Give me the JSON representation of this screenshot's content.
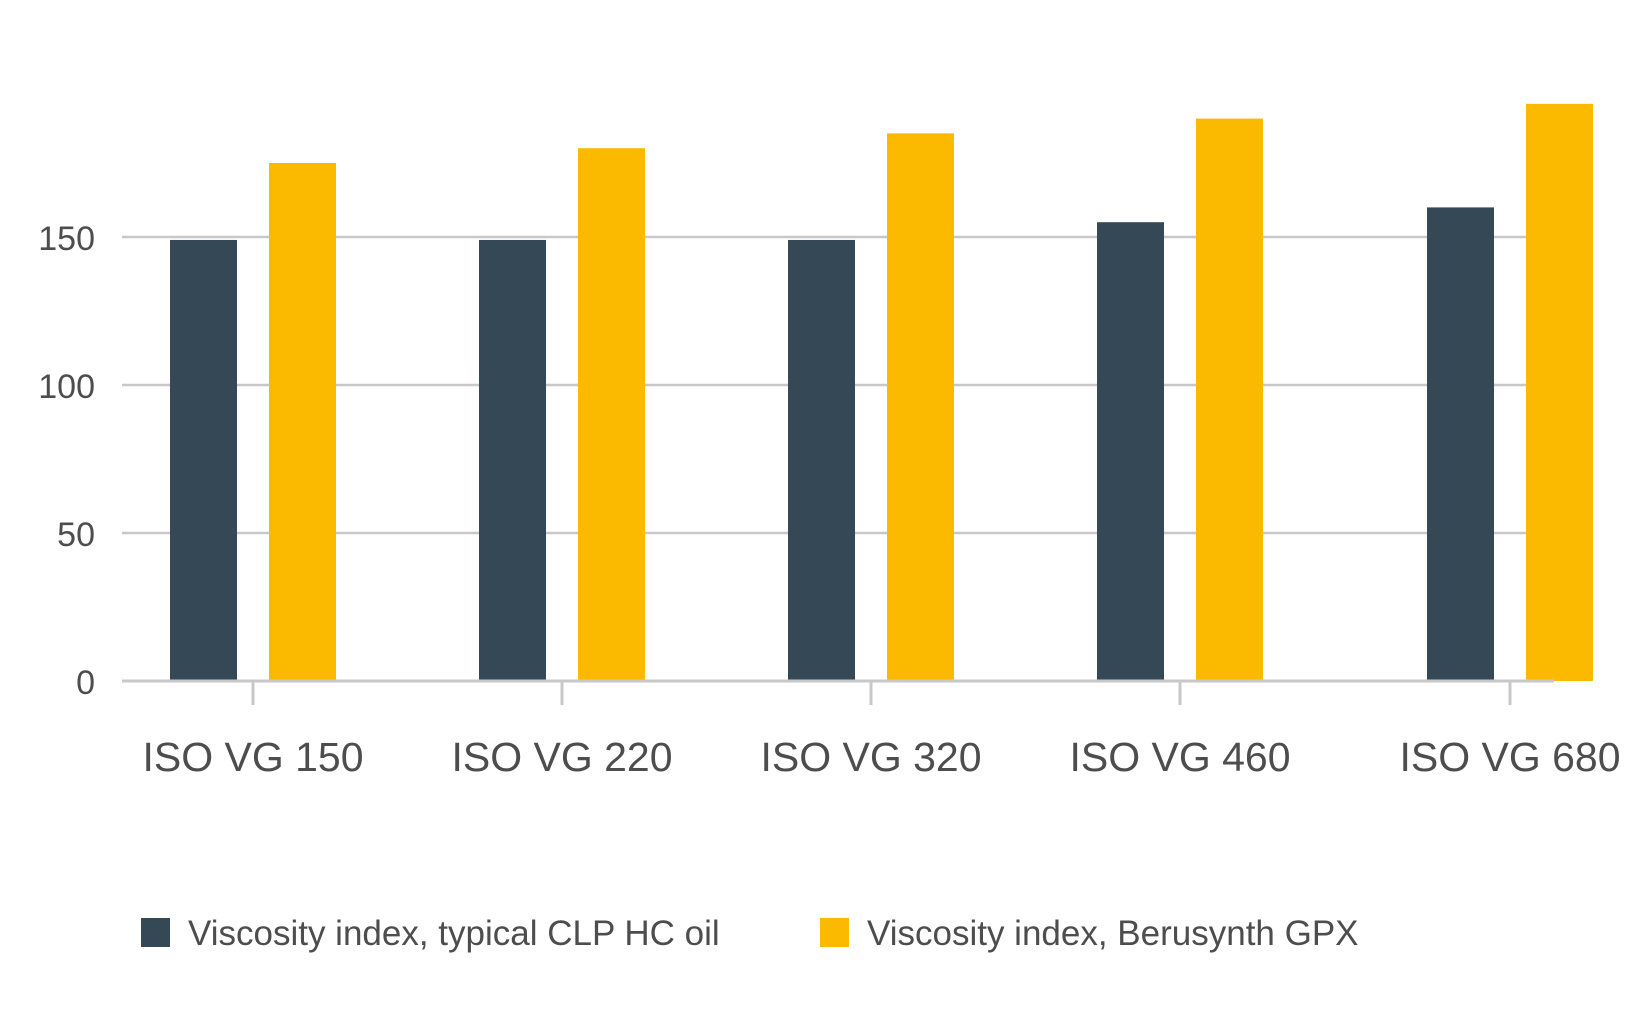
{
  "chart_data": {
    "type": "bar",
    "title": "",
    "xlabel": "",
    "ylabel": "",
    "categories": [
      "ISO VG 150",
      "ISO VG 220",
      "ISO VG 320",
      "ISO VG 460",
      "ISO VG 680"
    ],
    "series": [
      {
        "name": "Viscosity index, typical CLP HC oil",
        "values": [
          149,
          149,
          149,
          155,
          160
        ],
        "color": "#344955"
      },
      {
        "name": "Viscosity index, Berusynth GPX",
        "values": [
          175,
          180,
          185,
          190,
          195
        ],
        "color": "#FBBA00"
      }
    ],
    "yticks": [
      0,
      50,
      100,
      150
    ],
    "ylim": [
      0,
      210
    ],
    "grid": true,
    "legend_position": "bottom-left",
    "gridline_color": "#c8c8c8",
    "text_color": "#4d4d4d"
  }
}
